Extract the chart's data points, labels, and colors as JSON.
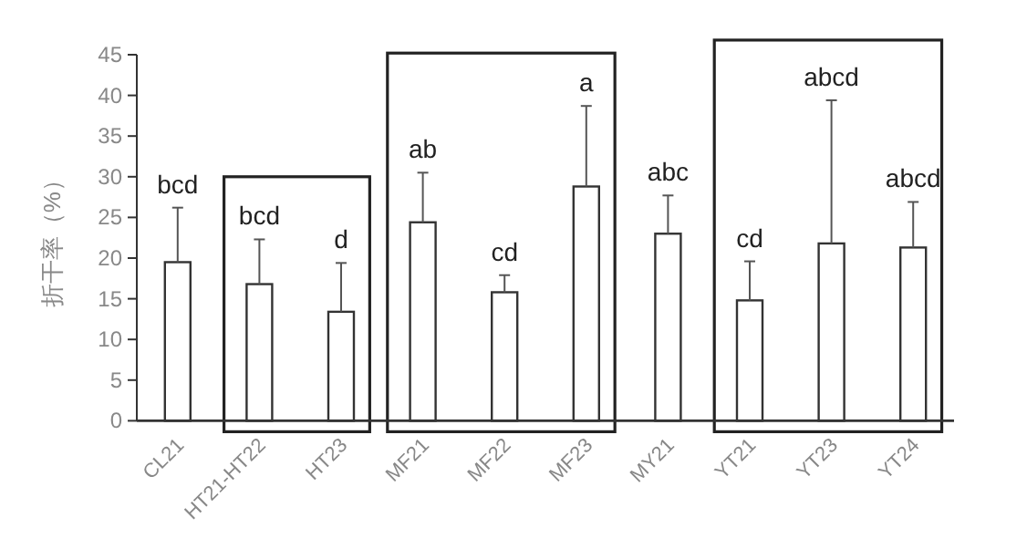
{
  "chart_data": {
    "type": "bar",
    "ylabel": "折干率（%）",
    "categories": [
      "CL21",
      "HT21-HT22",
      "HT23",
      "MF21",
      "MF22",
      "MF23",
      "MY21",
      "YT21",
      "YT23",
      "YT24"
    ],
    "values": [
      19.5,
      16.8,
      13.4,
      24.4,
      15.8,
      28.8,
      23.0,
      14.8,
      21.8,
      21.3
    ],
    "errors": [
      [
        19.5,
        26.2
      ],
      [
        16.8,
        22.3
      ],
      [
        13.4,
        19.4
      ],
      [
        24.4,
        30.5
      ],
      [
        15.8,
        17.9
      ],
      [
        28.8,
        38.7
      ],
      [
        23.0,
        27.7
      ],
      [
        14.8,
        19.6
      ],
      [
        21.8,
        39.4
      ],
      [
        21.3,
        26.9
      ]
    ],
    "color": "#ffffff",
    "ylim": [
      0,
      45
    ],
    "yticks": [
      0,
      5,
      10,
      15,
      20,
      25,
      30,
      35,
      40,
      45
    ],
    "grid": false,
    "annotations": [
      {
        "text": "bcd",
        "x": "CL21",
        "y": 26.2
      },
      {
        "text": "bcd",
        "x": "HT21-HT22",
        "y": 22.3
      },
      {
        "text": "d",
        "x": "HT23",
        "y": 19.4
      },
      {
        "text": "ab",
        "x": "MF21",
        "y": 30.5
      },
      {
        "text": "cd",
        "x": "MF22",
        "y": 17.9
      },
      {
        "text": "a",
        "x": "MF23",
        "y": 38.7
      },
      {
        "text": "abc",
        "x": "MY21",
        "y": 27.7
      },
      {
        "text": "cd",
        "x": "YT21",
        "y": 19.6
      },
      {
        "text": "abcd",
        "x": "YT23",
        "y": 39.4
      },
      {
        "text": "abcd",
        "x": "YT24",
        "y": 26.9
      }
    ]
  }
}
